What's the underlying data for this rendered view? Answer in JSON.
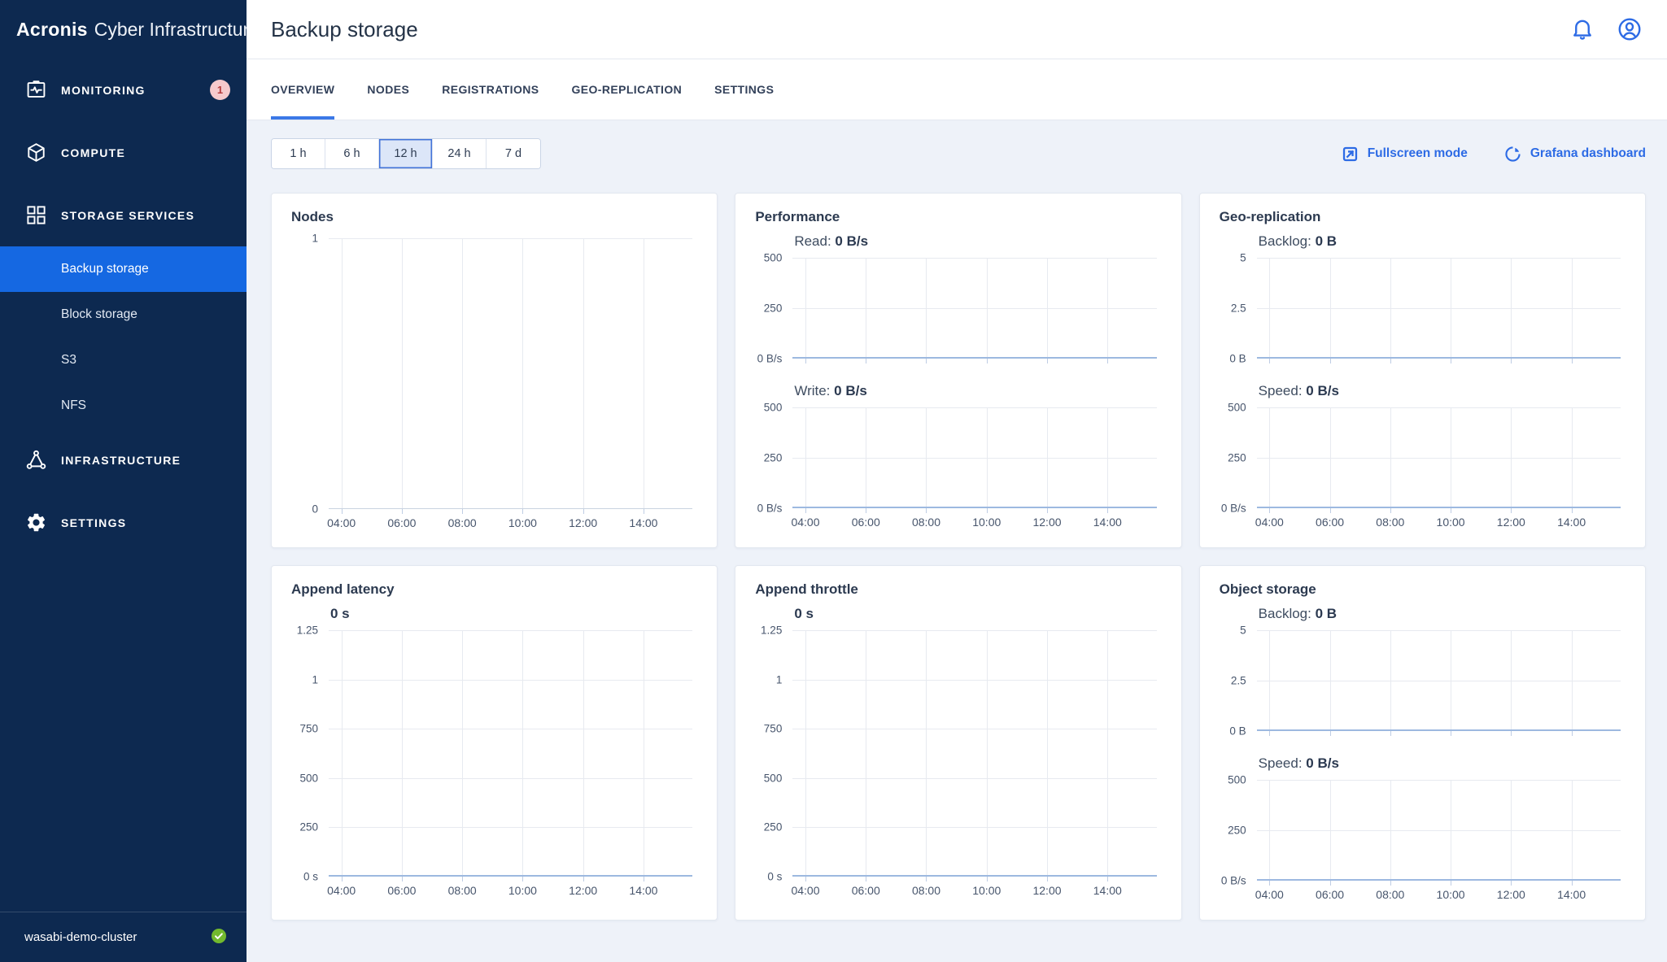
{
  "colors": {
    "accent_blue": "#2d6be5",
    "sidebar_navy": "#0d2950",
    "active_item_blue": "#1568e2",
    "zero_line_blue": "#9db9e0",
    "badge_bg": "#f6c9cc",
    "badge_text": "#b4393b",
    "success_green": "#72b92e"
  },
  "sidebar": {
    "brand": "Acronis",
    "product": "Cyber Infrastructure",
    "items": [
      {
        "label": "MONITORING",
        "icon": "monitoring-icon",
        "badge": "1"
      },
      {
        "label": "COMPUTE",
        "icon": "compute-icon"
      },
      {
        "label": "STORAGE SERVICES",
        "icon": "storage-services-icon",
        "expanded": true,
        "children": [
          {
            "label": "Backup storage",
            "active": true
          },
          {
            "label": "Block storage"
          },
          {
            "label": "S3"
          },
          {
            "label": "NFS"
          }
        ]
      },
      {
        "label": "INFRASTRUCTURE",
        "icon": "infrastructure-icon"
      },
      {
        "label": "SETTINGS",
        "icon": "settings-icon"
      }
    ],
    "footer": {
      "cluster_name": "wasabi-demo-cluster",
      "status_icon": "check-circle-icon",
      "status": "ok"
    }
  },
  "header": {
    "title": "Backup storage",
    "icons": [
      "bell-icon",
      "user-icon"
    ]
  },
  "tabs": {
    "items": [
      "OVERVIEW",
      "NODES",
      "REGISTRATIONS",
      "GEO-REPLICATION",
      "SETTINGS"
    ],
    "active": "OVERVIEW"
  },
  "toolbar": {
    "time_ranges": [
      "1 h",
      "6 h",
      "12 h",
      "24 h",
      "7 d"
    ],
    "selected_range": "12 h",
    "links": [
      {
        "label": "Fullscreen mode",
        "icon": "fullscreen-icon"
      },
      {
        "label": "Grafana dashboard",
        "icon": "grafana-icon"
      }
    ]
  },
  "chart_data": [
    {
      "type": "line",
      "title": "Nodes",
      "plot_size": "large",
      "grid": true,
      "legend": "none",
      "x_ticks": [
        "04:00",
        "06:00",
        "08:00",
        "10:00",
        "12:00",
        "14:00"
      ],
      "panels": [
        {
          "label": null,
          "value": null,
          "y_ticks": [
            "1",
            "0"
          ],
          "ylim": [
            0,
            1
          ],
          "axis_style": "plain",
          "series": [],
          "show_x_labels": true
        }
      ]
    },
    {
      "type": "line",
      "title": "Performance",
      "plot_size": "small",
      "grid": true,
      "legend": "none",
      "x_ticks": [
        "04:00",
        "06:00",
        "08:00",
        "10:00",
        "12:00",
        "14:00"
      ],
      "panels": [
        {
          "label": "Read",
          "value": "0 B/s",
          "y_ticks": [
            "500",
            "250",
            "0 B/s"
          ],
          "ylim": [
            0,
            500
          ],
          "axis_style": "zero-line",
          "series": [
            {
              "name": "Read",
              "values": [
                0,
                0,
                0,
                0,
                0,
                0
              ]
            }
          ],
          "show_x_labels": false
        },
        {
          "label": "Write",
          "value": "0 B/s",
          "y_ticks": [
            "500",
            "250",
            "0 B/s"
          ],
          "ylim": [
            0,
            500
          ],
          "axis_style": "zero-line",
          "series": [
            {
              "name": "Write",
              "values": [
                0,
                0,
                0,
                0,
                0,
                0
              ]
            }
          ],
          "show_x_labels": true
        }
      ]
    },
    {
      "type": "line",
      "title": "Geo-replication",
      "plot_size": "small",
      "grid": true,
      "legend": "none",
      "x_ticks": [
        "04:00",
        "06:00",
        "08:00",
        "10:00",
        "12:00",
        "14:00"
      ],
      "panels": [
        {
          "label": "Backlog",
          "value": "0 B",
          "y_ticks": [
            "5",
            "2.5",
            "0 B"
          ],
          "ylim": [
            0,
            5
          ],
          "axis_style": "zero-line",
          "series": [
            {
              "name": "Backlog",
              "values": [
                0,
                0,
                0,
                0,
                0,
                0
              ]
            }
          ],
          "show_x_labels": false
        },
        {
          "label": "Speed",
          "value": "0 B/s",
          "y_ticks": [
            "500",
            "250",
            "0 B/s"
          ],
          "ylim": [
            0,
            500
          ],
          "axis_style": "zero-line",
          "series": [
            {
              "name": "Speed",
              "values": [
                0,
                0,
                0,
                0,
                0,
                0
              ]
            }
          ],
          "show_x_labels": true
        }
      ]
    },
    {
      "type": "line",
      "title": "Append latency",
      "plot_size": "medium",
      "grid": true,
      "legend": "none",
      "x_ticks": [
        "04:00",
        "06:00",
        "08:00",
        "10:00",
        "12:00",
        "14:00"
      ],
      "panels": [
        {
          "label": null,
          "value": "0 s",
          "y_ticks": [
            "1.25",
            "1",
            "750",
            "500",
            "250",
            "0 s"
          ],
          "ylim": [
            0,
            1.25
          ],
          "axis_style": "zero-line",
          "series": [
            {
              "name": "Append latency",
              "values": [
                0,
                0,
                0,
                0,
                0,
                0
              ]
            }
          ],
          "show_x_labels": true
        }
      ]
    },
    {
      "type": "line",
      "title": "Append throttle",
      "plot_size": "medium",
      "grid": true,
      "legend": "none",
      "x_ticks": [
        "04:00",
        "06:00",
        "08:00",
        "10:00",
        "12:00",
        "14:00"
      ],
      "panels": [
        {
          "label": null,
          "value": "0 s",
          "y_ticks": [
            "1.25",
            "1",
            "750",
            "500",
            "250",
            "0 s"
          ],
          "ylim": [
            0,
            1.25
          ],
          "axis_style": "zero-line",
          "series": [
            {
              "name": "Append throttle",
              "values": [
                0,
                0,
                0,
                0,
                0,
                0
              ]
            }
          ],
          "show_x_labels": true
        }
      ]
    },
    {
      "type": "line",
      "title": "Object storage",
      "plot_size": "small",
      "grid": true,
      "legend": "none",
      "x_ticks": [
        "04:00",
        "06:00",
        "08:00",
        "10:00",
        "12:00",
        "14:00"
      ],
      "panels": [
        {
          "label": "Backlog",
          "value": "0 B",
          "y_ticks": [
            "5",
            "2.5",
            "0 B"
          ],
          "ylim": [
            0,
            5
          ],
          "axis_style": "zero-line",
          "series": [
            {
              "name": "Backlog",
              "values": [
                0,
                0,
                0,
                0,
                0,
                0
              ]
            }
          ],
          "show_x_labels": false
        },
        {
          "label": "Speed",
          "value": "0 B/s",
          "y_ticks": [
            "500",
            "250",
            "0 B/s"
          ],
          "ylim": [
            0,
            500
          ],
          "axis_style": "zero-line",
          "series": [
            {
              "name": "Speed",
              "values": [
                0,
                0,
                0,
                0,
                0,
                0
              ]
            }
          ],
          "show_x_labels": true
        }
      ]
    }
  ]
}
